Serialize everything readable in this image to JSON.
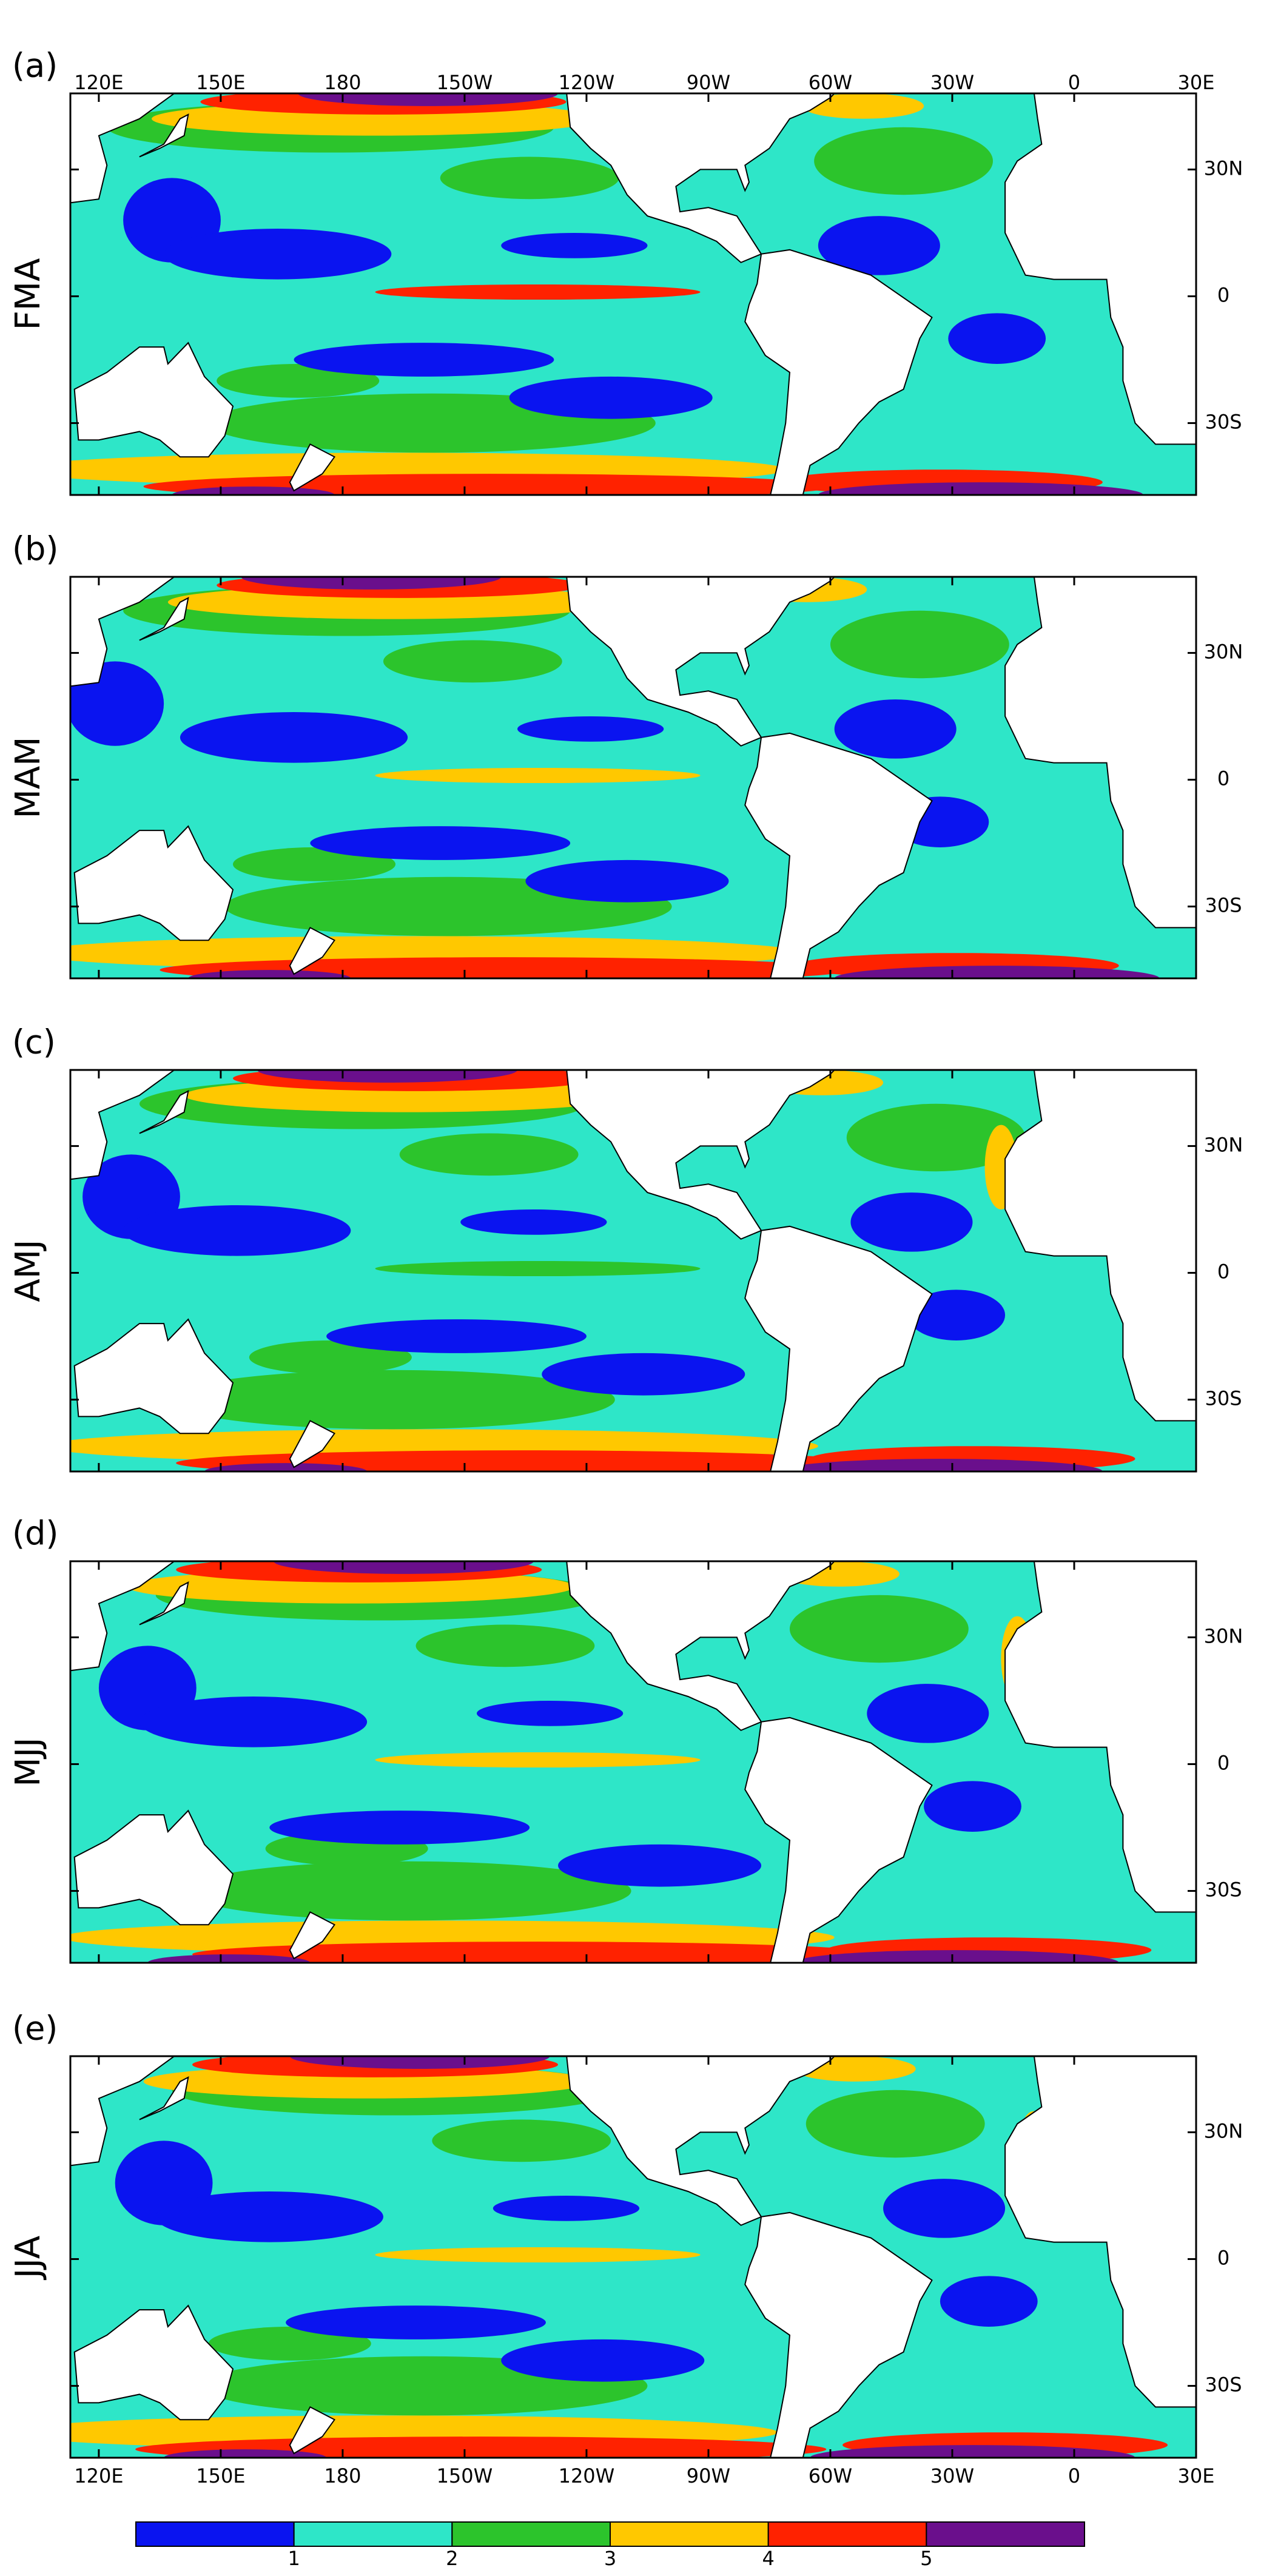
{
  "chart_data": {
    "type": "map",
    "panels": [
      {
        "label": "(a)",
        "season": "FMA"
      },
      {
        "label": "(b)",
        "season": "MAM"
      },
      {
        "label": "(c)",
        "season": "AMJ"
      },
      {
        "label": "(d)",
        "season": "MJJ"
      },
      {
        "label": "(e)",
        "season": "JJA"
      }
    ],
    "xlim": [
      113,
      390
    ],
    "xticks": [
      {
        "value": 120,
        "label": "120E"
      },
      {
        "value": 150,
        "label": "150E"
      },
      {
        "value": 180,
        "label": "180"
      },
      {
        "value": 210,
        "label": "150W"
      },
      {
        "value": 240,
        "label": "120W"
      },
      {
        "value": 270,
        "label": "90W"
      },
      {
        "value": 300,
        "label": "60W"
      },
      {
        "value": 330,
        "label": "30W"
      },
      {
        "value": 360,
        "label": "0"
      },
      {
        "value": 390,
        "label": "30E"
      }
    ],
    "ylim": [
      -47,
      48
    ],
    "yticks": [
      {
        "value": 30,
        "label": "30N"
      },
      0,
      {
        "value": -30,
        "label": "30S"
      }
    ],
    "colorbar": {
      "colors": [
        "#0a14f0",
        "#2ee6c8",
        "#2cc42c",
        "#ffc800",
        "#ff2200",
        "#6a0f8c"
      ],
      "labels": [
        1,
        2,
        3,
        4,
        5
      ]
    }
  }
}
